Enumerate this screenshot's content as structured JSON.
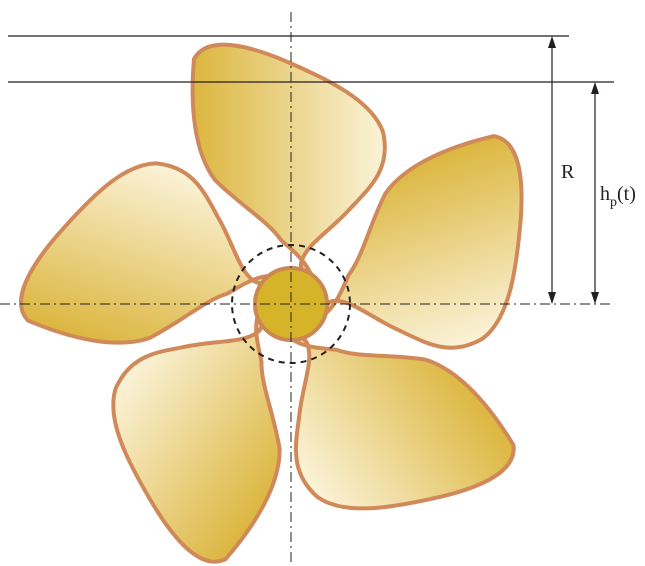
{
  "labels": {
    "radius": "R",
    "height_base": "h",
    "height_subscript": "p",
    "height_suffix": "(t)"
  },
  "colors": {
    "blade_outline": "#d08a5a",
    "blade_light": "#fbf3d9",
    "blade_dark": "#dcb63f",
    "hub_fill": "#d6b42a",
    "hub_outline": "#cc8852",
    "line": "#231f20"
  },
  "propeller": {
    "blade_count": 5
  }
}
